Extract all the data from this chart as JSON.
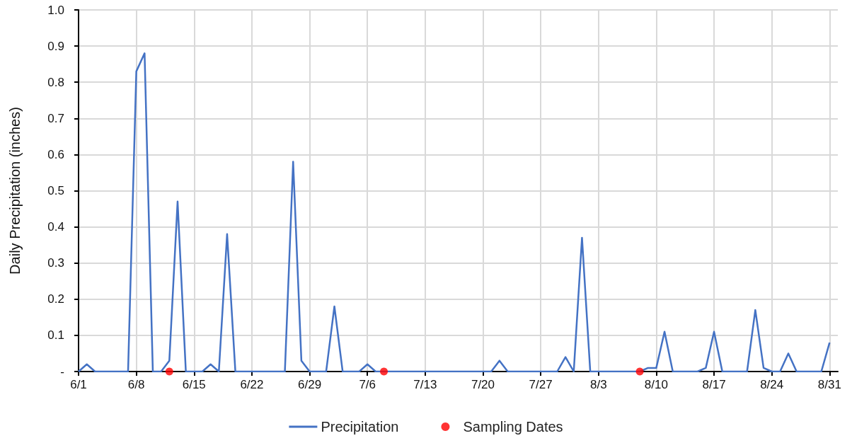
{
  "chart_data": {
    "type": "line",
    "ylabel": "Daily Precipitation (inches)",
    "xlim": [
      "--06-01",
      "--09-01"
    ],
    "xticks": [
      {
        "value": "--06-01",
        "label": "6/1"
      },
      {
        "value": "--06-08",
        "label": "6/8"
      },
      {
        "value": "--06-15",
        "label": "6/15"
      },
      {
        "value": "--06-22",
        "label": "6/22"
      },
      {
        "value": "--06-29",
        "label": "6/29"
      },
      {
        "value": "--07-06",
        "label": "7/6"
      },
      {
        "value": "--07-13",
        "label": "7/13"
      },
      {
        "value": "--07-20",
        "label": "7/20"
      },
      {
        "value": "--07-27",
        "label": "7/27"
      },
      {
        "value": "--08-03",
        "label": "8/3"
      },
      {
        "value": "--08-10",
        "label": "8/10"
      },
      {
        "value": "--08-17",
        "label": "8/17"
      },
      {
        "value": "--08-24",
        "label": "8/24"
      },
      {
        "value": "--08-31",
        "label": "8/31"
      }
    ],
    "ylim": [
      0,
      1
    ],
    "yticks": [
      {
        "value": 0,
        "label": "-"
      },
      0.1,
      0.2,
      0.3,
      0.4,
      0.5,
      0.6,
      0.7,
      0.8,
      0.9,
      {
        "value": 1,
        "label": "1.0"
      }
    ],
    "grid": true,
    "legend": "bottom",
    "series": [
      {
        "name": "Precipitation",
        "marker": "none",
        "color": "#4472c4",
        "x": [
          "--06-01",
          "--06-02",
          "--06-03",
          "--06-04",
          "--06-05",
          "--06-06",
          "--06-07",
          "--06-08",
          "--06-09",
          "--06-10",
          "--06-11",
          "--06-12",
          "--06-13",
          "--06-14",
          "--06-15",
          "--06-16",
          "--06-17",
          "--06-18",
          "--06-19",
          "--06-20",
          "--06-21",
          "--06-22",
          "--06-23",
          "--06-24",
          "--06-25",
          "--06-26",
          "--06-27",
          "--06-28",
          "--06-29",
          "--06-30",
          "--07-01",
          "--07-02",
          "--07-03",
          "--07-04",
          "--07-05",
          "--07-06",
          "--07-07",
          "--07-08",
          "--07-09",
          "--07-10",
          "--07-11",
          "--07-12",
          "--07-13",
          "--07-14",
          "--07-15",
          "--07-16",
          "--07-17",
          "--07-18",
          "--07-19",
          "--07-20",
          "--07-21",
          "--07-22",
          "--07-23",
          "--07-24",
          "--07-25",
          "--07-26",
          "--07-27",
          "--07-28",
          "--07-29",
          "--07-30",
          "--07-31",
          "--08-01",
          "--08-02",
          "--08-03",
          "--08-04",
          "--08-05",
          "--08-06",
          "--08-07",
          "--08-08",
          "--08-09",
          "--08-10",
          "--08-11",
          "--08-12",
          "--08-13",
          "--08-14",
          "--08-15",
          "--08-16",
          "--08-17",
          "--08-18",
          "--08-19",
          "--08-20",
          "--08-21",
          "--08-22",
          "--08-23",
          "--08-24",
          "--08-25",
          "--08-26",
          "--08-27",
          "--08-28",
          "--08-29",
          "--08-30",
          "--08-31"
        ],
        "values": [
          0,
          0.02,
          0,
          0,
          0,
          0,
          0,
          0.83,
          0.88,
          0,
          0,
          0.03,
          0.47,
          0,
          0,
          0,
          0.02,
          0,
          0.38,
          0,
          0,
          0,
          0,
          0,
          0,
          0,
          0.58,
          0.03,
          0,
          0,
          0,
          0.18,
          0,
          0,
          0,
          0.02,
          0,
          0,
          0,
          0,
          0,
          0,
          0,
          0,
          0,
          0,
          0,
          0,
          0,
          0,
          0,
          0.03,
          0,
          0,
          0,
          0,
          0,
          0,
          0,
          0.04,
          0,
          0.37,
          0,
          0,
          0,
          0,
          0,
          0,
          0,
          0.01,
          0.01,
          0.11,
          0,
          0,
          0,
          0,
          0.01,
          0.11,
          0,
          0,
          0,
          0,
          0.17,
          0.01,
          0,
          0,
          0.05,
          0,
          0,
          0,
          0,
          0.08
        ]
      },
      {
        "name": "Sampling Dates",
        "type": "scatter",
        "marker": "circle",
        "color": "#ff0000",
        "x": [
          "--06-12",
          "--07-08",
          "--08-08"
        ],
        "values": [
          0,
          0,
          0
        ]
      }
    ]
  }
}
